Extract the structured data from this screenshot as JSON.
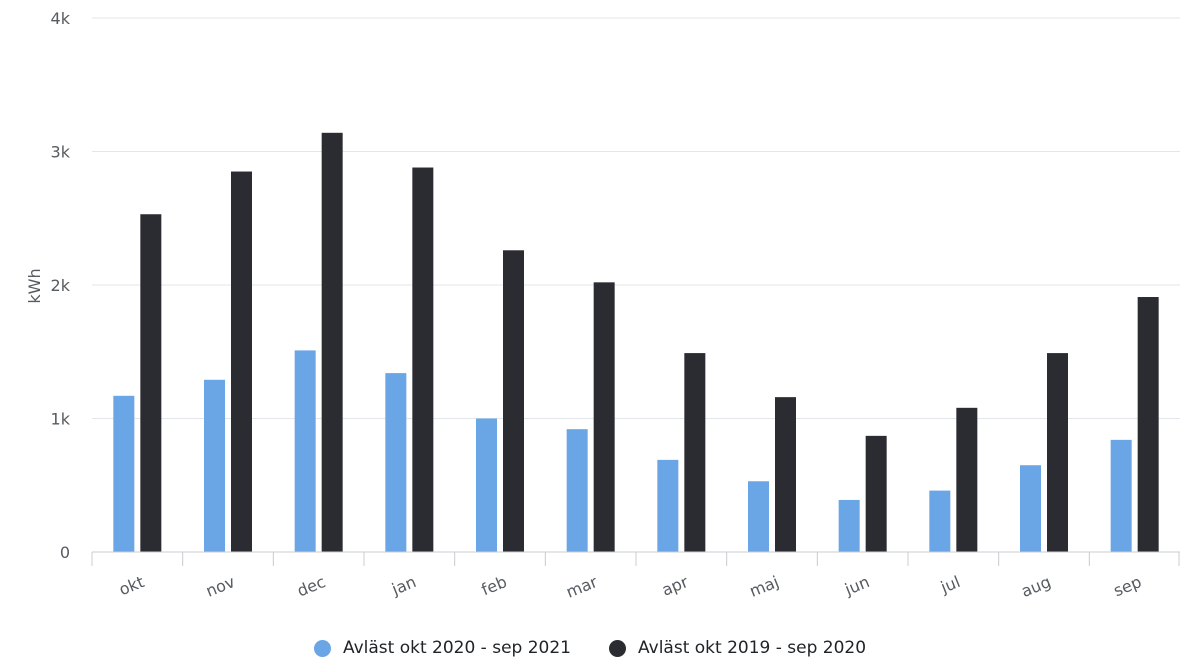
{
  "chart_data": {
    "type": "bar",
    "ylabel": "kWh",
    "xlabel": "",
    "ylim": [
      0,
      4000
    ],
    "yticks": [
      0,
      1000,
      2000,
      3000,
      4000
    ],
    "ytick_labels": [
      "0",
      "1k",
      "2k",
      "3k",
      "4k"
    ],
    "grid": true,
    "legend_position": "bottom",
    "categories": [
      "okt",
      "nov",
      "dec",
      "jan",
      "feb",
      "mar",
      "apr",
      "maj",
      "jun",
      "jul",
      "aug",
      "sep"
    ],
    "series": [
      {
        "name": "Avläst okt 2020 - sep 2021",
        "color": "#6aa5e6",
        "values": [
          1170,
          1290,
          1510,
          1340,
          1000,
          920,
          690,
          530,
          390,
          460,
          650,
          840
        ]
      },
      {
        "name": "Avläst okt 2019 - sep 2020",
        "color": "#2b2c31",
        "values": [
          2530,
          2850,
          3140,
          2880,
          2260,
          2020,
          1490,
          1160,
          870,
          1080,
          1490,
          1910
        ]
      }
    ]
  }
}
